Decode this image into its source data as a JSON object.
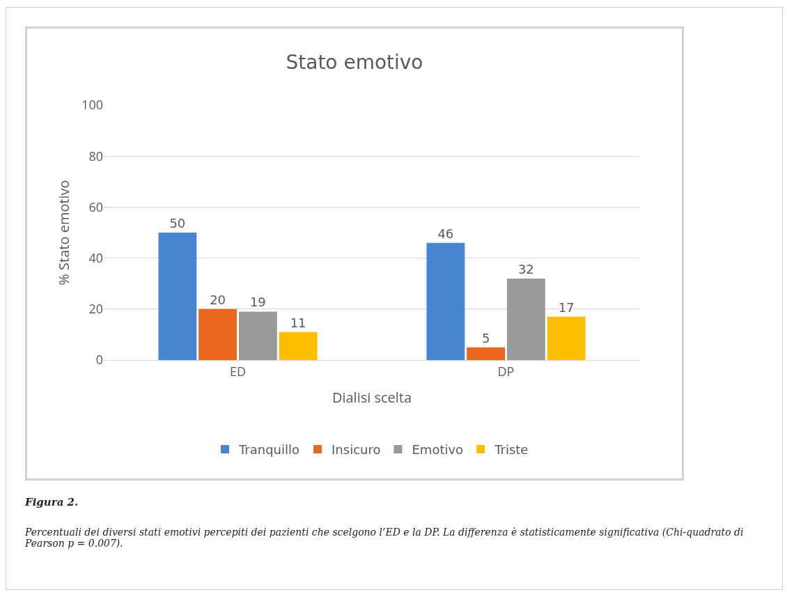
{
  "chart_data": {
    "type": "bar",
    "title": "Stato emotivo",
    "xlabel": "Dialisi scelta",
    "ylabel": "% Stato emotivo",
    "categories": [
      "ED",
      "DP"
    ],
    "series": [
      {
        "name": "Tranquillo",
        "color": "#4a86d0",
        "values": [
          50,
          46
        ]
      },
      {
        "name": "Insicuro",
        "color": "#e8691e",
        "values": [
          20,
          5
        ]
      },
      {
        "name": "Emotivo",
        "color": "#9a9a9a",
        "values": [
          19,
          32
        ]
      },
      {
        "name": "Triste",
        "color": "#ffbf00",
        "values": [
          11,
          17
        ]
      }
    ],
    "ylim": [
      0,
      100
    ],
    "yticks": [
      0,
      20,
      40,
      60,
      80,
      100
    ],
    "grid": "y",
    "legend": "bottom",
    "data_labels": true,
    "annotations": [
      "Figura 2.",
      "Percentuali dei diversi stati emotivi percepiti dei pazienti che scelgono l’ED e la DP. La differenza è statisticamente significativa (Chi-quadrato di Pearson p = 0.007)."
    ]
  }
}
